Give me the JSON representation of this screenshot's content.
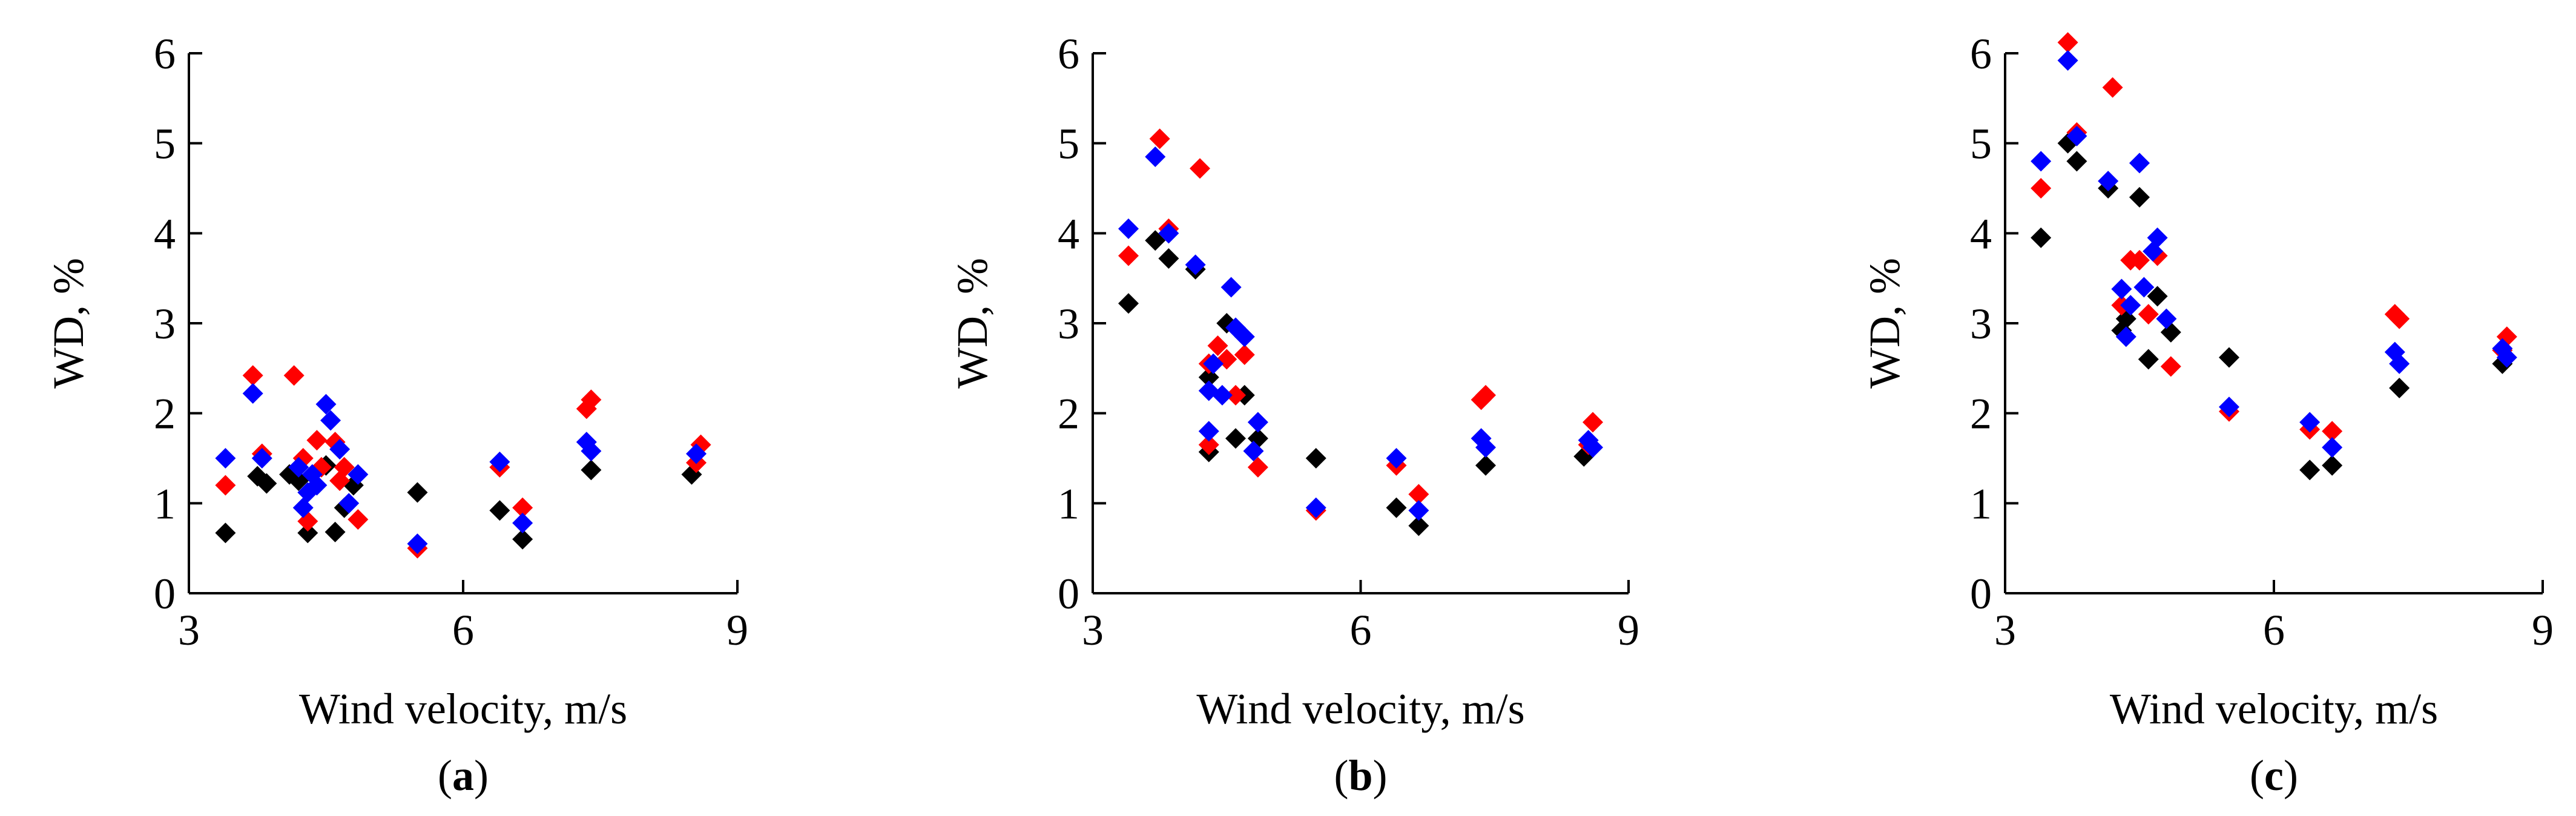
{
  "chart_data": [
    {
      "type": "scatter",
      "panel_label": "a",
      "xlabel": "Wind velocity, m/s",
      "ylabel": "WD, %",
      "xlim": [
        3,
        9
      ],
      "ylim": [
        0,
        6
      ],
      "x_ticks": [
        3,
        6,
        9
      ],
      "y_ticks": [
        0,
        1,
        2,
        3,
        4,
        5,
        6
      ],
      "grid": false,
      "series": [
        {
          "name": "black",
          "color": "#000000",
          "points": [
            [
              3.4,
              0.67
            ],
            [
              3.75,
              1.3
            ],
            [
              3.85,
              1.22
            ],
            [
              4.1,
              1.32
            ],
            [
              4.2,
              1.25
            ],
            [
              4.3,
              0.67
            ],
            [
              4.5,
              1.42
            ],
            [
              4.6,
              0.68
            ],
            [
              4.7,
              0.95
            ],
            [
              4.8,
              1.2
            ],
            [
              5.5,
              1.12
            ],
            [
              6.4,
              0.92
            ],
            [
              6.65,
              0.6
            ],
            [
              7.4,
              1.37
            ],
            [
              8.5,
              1.32
            ]
          ]
        },
        {
          "name": "red",
          "color": "#ff0000",
          "points": [
            [
              3.4,
              1.2
            ],
            [
              3.7,
              2.42
            ],
            [
              3.8,
              1.55
            ],
            [
              4.15,
              2.42
            ],
            [
              4.25,
              1.5
            ],
            [
              4.3,
              0.8
            ],
            [
              4.4,
              1.7
            ],
            [
              4.45,
              1.4
            ],
            [
              4.6,
              1.68
            ],
            [
              4.65,
              1.25
            ],
            [
              4.7,
              1.4
            ],
            [
              4.85,
              0.82
            ],
            [
              5.5,
              0.5
            ],
            [
              6.4,
              1.4
            ],
            [
              6.65,
              0.95
            ],
            [
              7.35,
              2.05
            ],
            [
              7.4,
              2.15
            ],
            [
              8.55,
              1.45
            ],
            [
              8.6,
              1.65
            ]
          ]
        },
        {
          "name": "blue",
          "color": "#0000ff",
          "points": [
            [
              3.4,
              1.5
            ],
            [
              3.7,
              2.22
            ],
            [
              3.8,
              1.5
            ],
            [
              4.2,
              1.4
            ],
            [
              4.25,
              0.95
            ],
            [
              4.3,
              1.12
            ],
            [
              4.35,
              1.32
            ],
            [
              4.4,
              1.2
            ],
            [
              4.5,
              2.1
            ],
            [
              4.55,
              1.92
            ],
            [
              4.65,
              1.6
            ],
            [
              4.75,
              1.0
            ],
            [
              4.85,
              1.32
            ],
            [
              5.5,
              0.55
            ],
            [
              6.4,
              1.46
            ],
            [
              6.65,
              0.78
            ],
            [
              7.35,
              1.68
            ],
            [
              7.4,
              1.58
            ],
            [
              8.55,
              1.55
            ]
          ]
        }
      ]
    },
    {
      "type": "scatter",
      "panel_label": "b",
      "xlabel": "Wind velocity, m/s",
      "ylabel": "WD, %",
      "xlim": [
        3,
        9
      ],
      "ylim": [
        0,
        6
      ],
      "x_ticks": [
        3,
        6,
        9
      ],
      "y_ticks": [
        0,
        1,
        2,
        3,
        4,
        5,
        6
      ],
      "grid": false,
      "series": [
        {
          "name": "black",
          "color": "#000000",
          "points": [
            [
              3.4,
              3.22
            ],
            [
              3.7,
              3.92
            ],
            [
              3.85,
              3.72
            ],
            [
              4.15,
              3.6
            ],
            [
              4.3,
              1.57
            ],
            [
              4.3,
              2.4
            ],
            [
              4.5,
              3.0
            ],
            [
              4.6,
              1.72
            ],
            [
              4.7,
              2.2
            ],
            [
              4.85,
              1.72
            ],
            [
              5.5,
              1.5
            ],
            [
              6.4,
              0.95
            ],
            [
              6.65,
              0.75
            ],
            [
              7.4,
              1.42
            ],
            [
              8.5,
              1.52
            ]
          ]
        },
        {
          "name": "red",
          "color": "#ff0000",
          "points": [
            [
              3.4,
              3.75
            ],
            [
              3.75,
              5.05
            ],
            [
              3.85,
              4.05
            ],
            [
              4.2,
              4.72
            ],
            [
              4.3,
              1.65
            ],
            [
              4.3,
              2.55
            ],
            [
              4.4,
              2.75
            ],
            [
              4.5,
              2.6
            ],
            [
              4.6,
              2.2
            ],
            [
              4.7,
              2.65
            ],
            [
              4.85,
              1.4
            ],
            [
              5.5,
              0.92
            ],
            [
              6.4,
              1.42
            ],
            [
              6.65,
              1.1
            ],
            [
              7.35,
              2.15
            ],
            [
              7.4,
              2.2
            ],
            [
              8.55,
              1.65
            ],
            [
              8.6,
              1.9
            ]
          ]
        },
        {
          "name": "blue",
          "color": "#0000ff",
          "points": [
            [
              3.4,
              4.05
            ],
            [
              3.7,
              4.85
            ],
            [
              3.85,
              4.0
            ],
            [
              4.15,
              3.65
            ],
            [
              4.3,
              1.8
            ],
            [
              4.3,
              2.25
            ],
            [
              4.35,
              2.55
            ],
            [
              4.45,
              2.2
            ],
            [
              4.55,
              3.4
            ],
            [
              4.6,
              2.95
            ],
            [
              4.7,
              2.85
            ],
            [
              4.8,
              1.58
            ],
            [
              4.85,
              1.9
            ],
            [
              5.5,
              0.95
            ],
            [
              6.4,
              1.5
            ],
            [
              6.65,
              0.92
            ],
            [
              7.35,
              1.72
            ],
            [
              7.4,
              1.62
            ],
            [
              8.55,
              1.7
            ],
            [
              8.6,
              1.62
            ]
          ]
        }
      ]
    },
    {
      "type": "scatter",
      "panel_label": "c",
      "xlabel": "Wind velocity, m/s",
      "ylabel": "WD, %",
      "xlim": [
        3,
        9
      ],
      "ylim": [
        0,
        6
      ],
      "x_ticks": [
        3,
        6,
        9
      ],
      "y_ticks": [
        0,
        1,
        2,
        3,
        4,
        5,
        6
      ],
      "grid": false,
      "series": [
        {
          "name": "black",
          "color": "#000000",
          "points": [
            [
              3.4,
              3.95
            ],
            [
              3.7,
              5.0
            ],
            [
              3.8,
              4.8
            ],
            [
              4.15,
              4.5
            ],
            [
              4.3,
              2.92
            ],
            [
              4.35,
              3.05
            ],
            [
              4.5,
              4.4
            ],
            [
              4.6,
              2.6
            ],
            [
              4.7,
              3.3
            ],
            [
              4.85,
              2.9
            ],
            [
              5.5,
              2.62
            ],
            [
              6.4,
              1.37
            ],
            [
              6.65,
              1.42
            ],
            [
              7.4,
              2.28
            ],
            [
              8.55,
              2.55
            ]
          ]
        },
        {
          "name": "red",
          "color": "#ff0000",
          "points": [
            [
              3.4,
              4.5
            ],
            [
              3.7,
              6.12
            ],
            [
              3.8,
              5.12
            ],
            [
              4.2,
              5.62
            ],
            [
              4.3,
              3.2
            ],
            [
              4.4,
              3.7
            ],
            [
              4.5,
              3.7
            ],
            [
              4.6,
              3.1
            ],
            [
              4.7,
              3.75
            ],
            [
              4.85,
              2.52
            ],
            [
              5.5,
              2.02
            ],
            [
              6.4,
              1.82
            ],
            [
              6.65,
              1.8
            ],
            [
              7.35,
              3.1
            ],
            [
              7.4,
              3.05
            ],
            [
              8.55,
              2.7
            ],
            [
              8.6,
              2.85
            ]
          ]
        },
        {
          "name": "blue",
          "color": "#0000ff",
          "points": [
            [
              3.4,
              4.8
            ],
            [
              3.7,
              5.92
            ],
            [
              3.8,
              5.08
            ],
            [
              4.15,
              4.58
            ],
            [
              4.3,
              3.38
            ],
            [
              4.35,
              2.85
            ],
            [
              4.4,
              3.2
            ],
            [
              4.5,
              4.78
            ],
            [
              4.55,
              3.4
            ],
            [
              4.65,
              3.8
            ],
            [
              4.7,
              3.95
            ],
            [
              4.8,
              3.05
            ],
            [
              5.5,
              2.07
            ],
            [
              6.4,
              1.9
            ],
            [
              6.65,
              1.62
            ],
            [
              7.35,
              2.68
            ],
            [
              7.4,
              2.55
            ],
            [
              8.55,
              2.72
            ],
            [
              8.6,
              2.62
            ]
          ]
        }
      ]
    }
  ]
}
